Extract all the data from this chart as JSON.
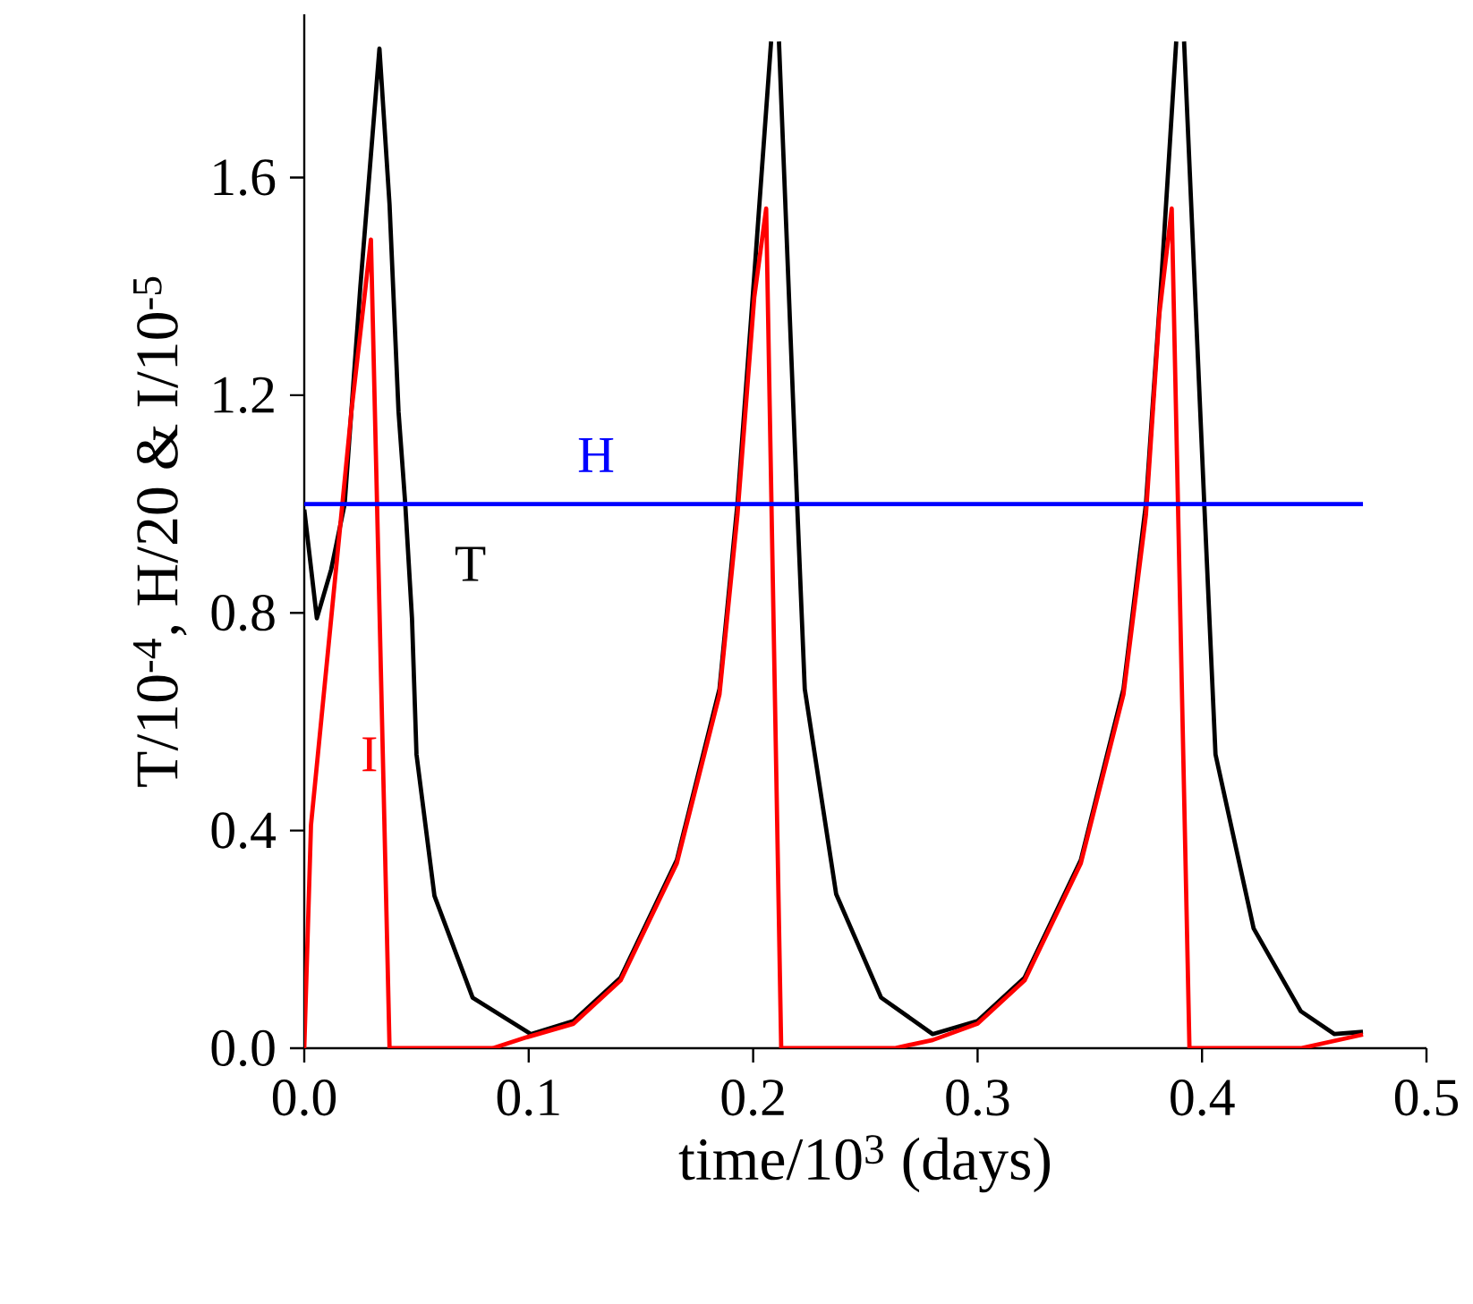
{
  "chart_data": {
    "type": "line",
    "xlabel": "time/10$^{3}$ (days)",
    "ylabel": "T/10$^{-4}$, H/20 & I/10$^{-5}$",
    "xlim": [
      0,
      0.5
    ],
    "ylim": [
      0,
      1.9
    ],
    "xticks": [
      {
        "value": 0,
        "label": "0.0"
      },
      {
        "value": 0.1,
        "label": "0.1"
      },
      {
        "value": 0.2,
        "label": "0.2"
      },
      {
        "value": 0.3,
        "label": "0.3"
      },
      {
        "value": 0.4,
        "label": "0.4"
      },
      {
        "value": 0.5,
        "label": "0.5"
      }
    ],
    "yticks": [
      {
        "value": 0,
        "label": "0.0"
      },
      {
        "value": 0.4,
        "label": "0.4"
      },
      {
        "value": 0.8,
        "label": "0.8"
      },
      {
        "value": 1.2,
        "label": "1.2"
      },
      {
        "value": 1.6,
        "label": "1.6"
      }
    ],
    "marker": "none",
    "line_style": "solid",
    "series": [
      {
        "name": "T",
        "color": "#000000",
        "x": [
          0,
          0.0056,
          0.012,
          0.018,
          0.025,
          0.0335,
          0.038,
          0.042,
          0.045,
          0.048,
          0.05,
          0.058,
          0.075,
          0.101,
          0.12,
          0.141,
          0.166,
          0.185,
          0.193,
          0.2005,
          0.208,
          0.2095,
          0.2115,
          0.2196,
          0.223,
          0.237,
          0.257,
          0.28,
          0.3,
          0.321,
          0.346,
          0.365,
          0.375,
          0.382,
          0.3885,
          0.39,
          0.392,
          0.401,
          0.406,
          0.423,
          0.444,
          0.459,
          0.4717
        ],
        "values": [
          0.99,
          0.79,
          0.88,
          1.0,
          1.4,
          1.837,
          1.55,
          1.17,
          1.0,
          0.79,
          0.54,
          0.28,
          0.093,
          0.026,
          0.05,
          0.13,
          0.346,
          0.66,
          1.0,
          1.42,
          1.85,
          null,
          1.85,
          1.0,
          0.66,
          0.283,
          0.093,
          0.026,
          0.05,
          0.13,
          0.346,
          0.66,
          1.0,
          1.42,
          1.85,
          null,
          1.85,
          1.0,
          0.54,
          0.22,
          0.068,
          0.026,
          0.03
        ]
      },
      {
        "name": "I",
        "color": "#ff0000",
        "x": [
          0,
          0.003,
          0.012,
          0.021,
          0.0297,
          0.035,
          0.038,
          0.084,
          0.099,
          0.12,
          0.141,
          0.166,
          0.185,
          0.193,
          0.2005,
          0.2058,
          0.2125,
          0.263,
          0.28,
          0.3,
          0.321,
          0.346,
          0.365,
          0.375,
          0.381,
          0.3865,
          0.3944,
          0.444,
          0.4717
        ],
        "values": [
          0,
          0.41,
          0.79,
          1.17,
          1.486,
          0.54,
          0,
          0,
          0.02,
          0.045,
          0.125,
          0.34,
          0.65,
          0.98,
          1.38,
          1.543,
          0,
          0,
          0.015,
          0.045,
          0.125,
          0.34,
          0.65,
          0.98,
          1.35,
          1.543,
          0,
          0,
          0.025
        ]
      },
      {
        "name": "H",
        "color": "#0000ff",
        "x": [
          0,
          0.4717
        ],
        "values": [
          1.0,
          1.0
        ]
      }
    ]
  }
}
